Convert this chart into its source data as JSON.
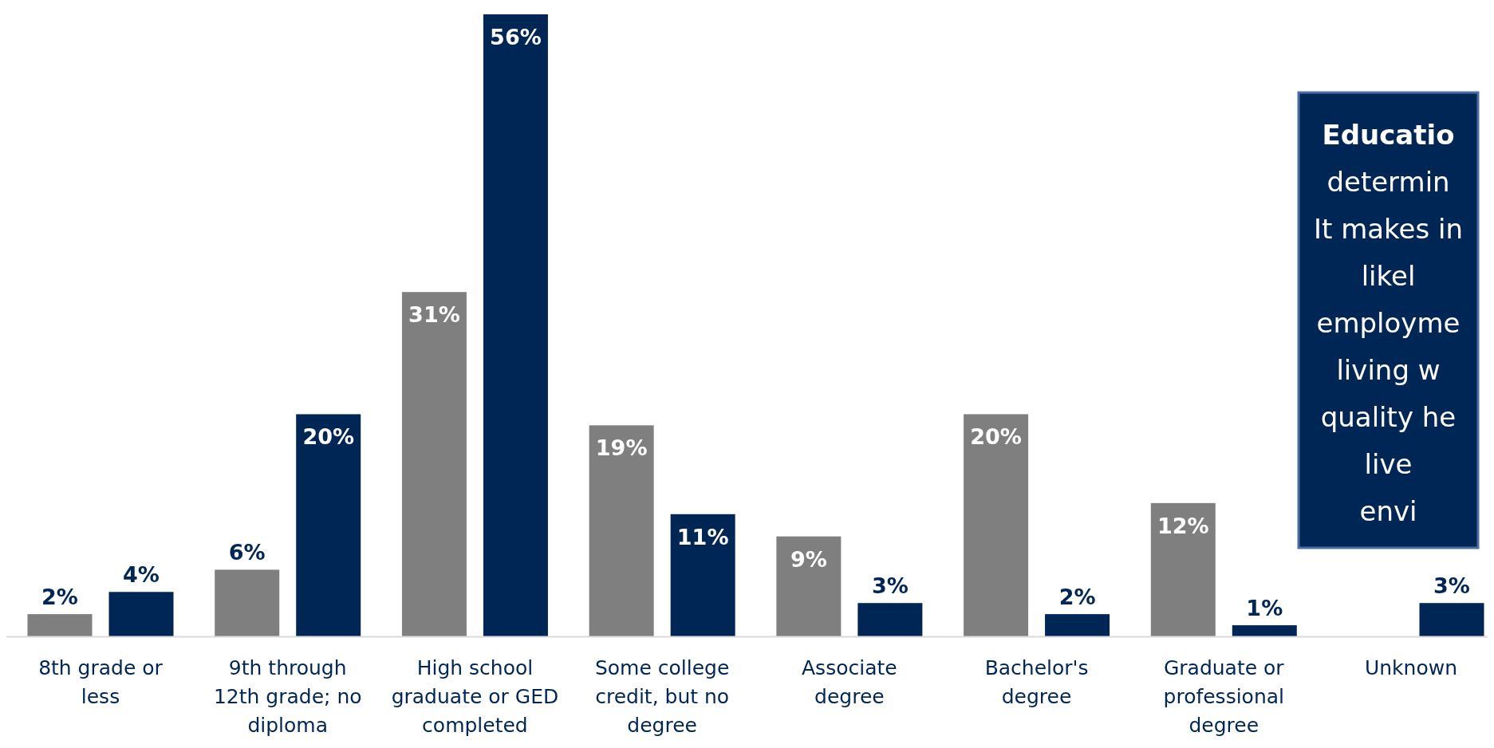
{
  "chart_data": {
    "type": "bar",
    "categories": [
      "8th grade or less",
      "9th through 12th grade; no diploma",
      "High school graduate or GED completed",
      "Some college credit, but no degree",
      "Associate degree",
      "Bachelor's degree",
      "Graduate or professional degree",
      "Unknown"
    ],
    "series": [
      {
        "color": "#7f7f7f",
        "values": [
          2,
          6,
          31,
          19,
          9,
          20,
          12,
          null
        ],
        "value_labels": [
          "2%",
          "6%",
          "31%",
          "19%",
          "9%",
          "20%",
          "12%",
          null
        ]
      },
      {
        "color": "#002655",
        "values": [
          4,
          20,
          56,
          11,
          3,
          2,
          1,
          3
        ],
        "value_labels": [
          "4%",
          "20%",
          "56%",
          "11%",
          "3%",
          "2%",
          "1%",
          "3%"
        ]
      }
    ],
    "annotations": [
      "Educatio",
      "determin",
      "It makes in",
      "likel",
      "employme",
      "living w",
      "quality he",
      "live",
      "envi"
    ]
  }
}
